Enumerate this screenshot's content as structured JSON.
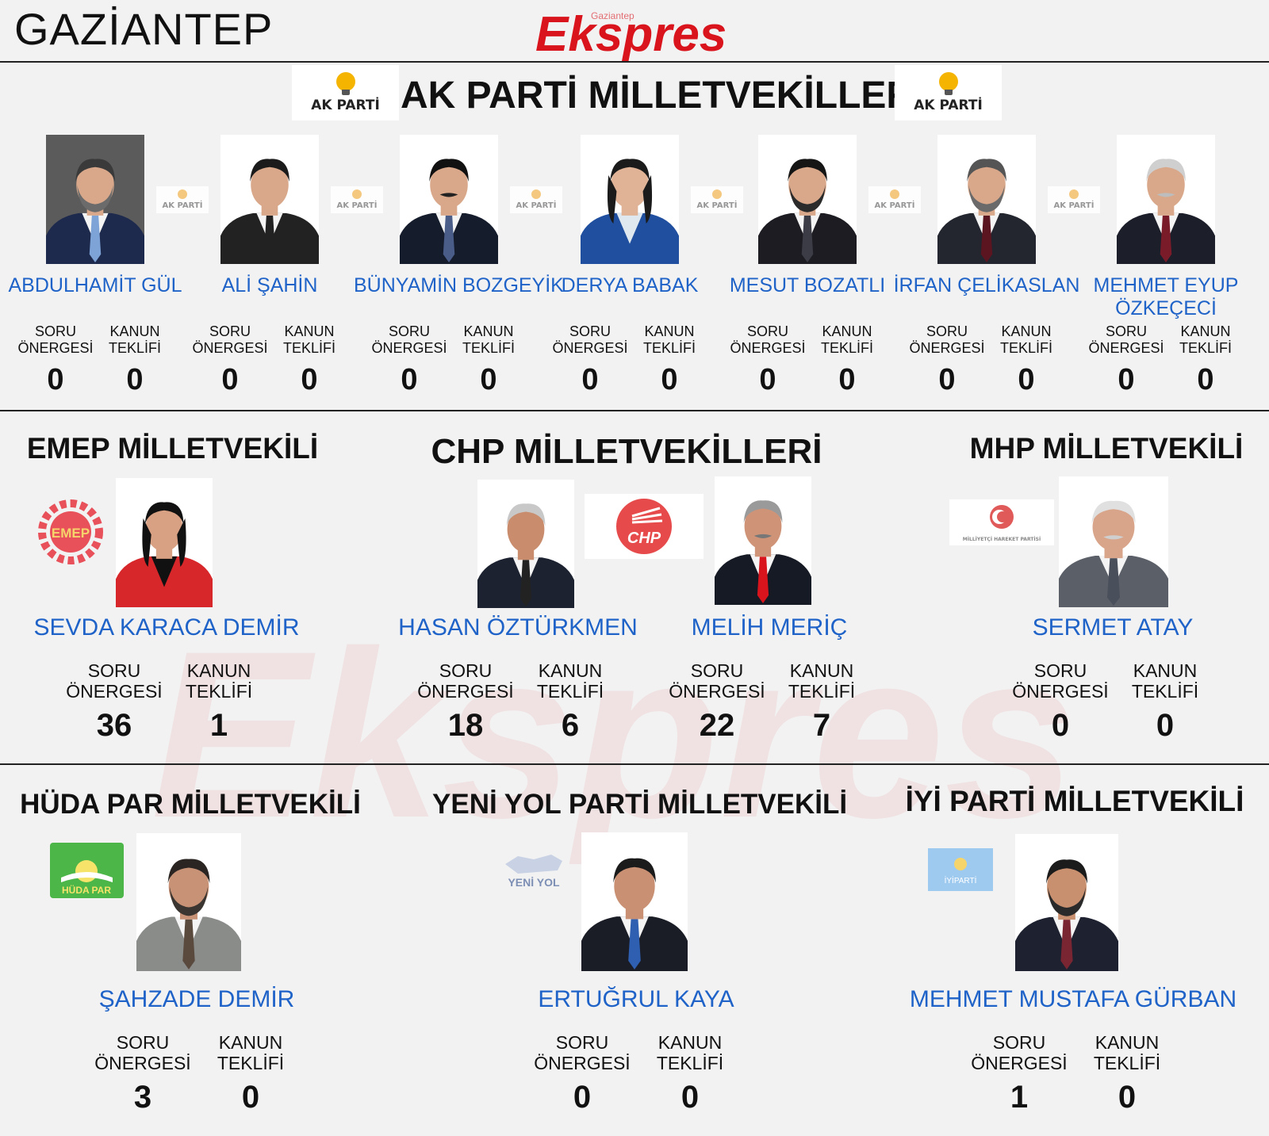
{
  "header": {
    "city": "GAZİANTEP",
    "logo_text": "Ekspres",
    "logo_subtext": "Gaziantep"
  },
  "labels": {
    "soru_line1": "SORU",
    "soru_line2": "ÖNERGESİ",
    "kanun_line1": "KANUN",
    "kanun_line2": "TEKLİFİ"
  },
  "akparti": {
    "title": "AK PARTİ MİLLETVEKİLLERİ",
    "badge_text": "AK PARTİ",
    "members": [
      {
        "name": "ABDULHAMİT GÜL",
        "soru": "0",
        "kanun": "0"
      },
      {
        "name": "ALİ ŞAHİN",
        "soru": "0",
        "kanun": "0"
      },
      {
        "name": "BÜNYAMİN BOZGEYİK",
        "soru": "0",
        "kanun": "0"
      },
      {
        "name": "DERYA BABAK",
        "soru": "0",
        "kanun": "0"
      },
      {
        "name": "MESUT BOZATLI",
        "soru": "0",
        "kanun": "0"
      },
      {
        "name": "İRFAN ÇELİKASLAN",
        "soru": "0",
        "kanun": "0"
      },
      {
        "name": "MEHMET EYUP",
        "name2": "ÖZKEÇECİ",
        "soru": "0",
        "kanun": "0"
      }
    ]
  },
  "emep": {
    "title": "EMEP MİLLETVEKİLİ",
    "logo_text": "EMEP",
    "member": {
      "name": "SEVDA KARACA DEMİR",
      "soru": "36",
      "kanun": "1"
    }
  },
  "chp": {
    "title": "CHP MİLLETVEKİLLERİ",
    "logo_text": "CHP",
    "members": [
      {
        "name": "HASAN ÖZTÜRKMEN",
        "soru": "18",
        "kanun": "6"
      },
      {
        "name": "MELİH MERİÇ",
        "soru": "22",
        "kanun": "7"
      }
    ]
  },
  "mhp": {
    "title": "MHP MİLLETVEKİLİ",
    "logo_text": "MİLLİYETÇİ HAREKET PARTİSİ",
    "member": {
      "name": "SERMET ATAY",
      "soru": "0",
      "kanun": "0"
    }
  },
  "hudapar": {
    "title": "HÜDA PAR MİLLETVEKİLİ",
    "logo_text": "HÜDA PAR",
    "member": {
      "name": "ŞAHZADE DEMİR",
      "soru": "3",
      "kanun": "0"
    }
  },
  "yeniyol": {
    "title": "YENİ YOL PARTİ MİLLETVEKİLİ",
    "logo_text": "YENİ YOL",
    "member": {
      "name": "ERTUĞRUL KAYA",
      "soru": "0",
      "kanun": "0"
    }
  },
  "iyi": {
    "title": "İYİ PARTİ MİLLETVEKİLİ",
    "logo_text": "İYİPARTİ",
    "member": {
      "name": "MEHMET MUSTAFA GÜRBAN",
      "soru": "1",
      "kanun": "0"
    }
  },
  "colors": {
    "name_blue": "#1f63c8",
    "logo_red": "#d9141d",
    "background": "#f2f2f2"
  }
}
